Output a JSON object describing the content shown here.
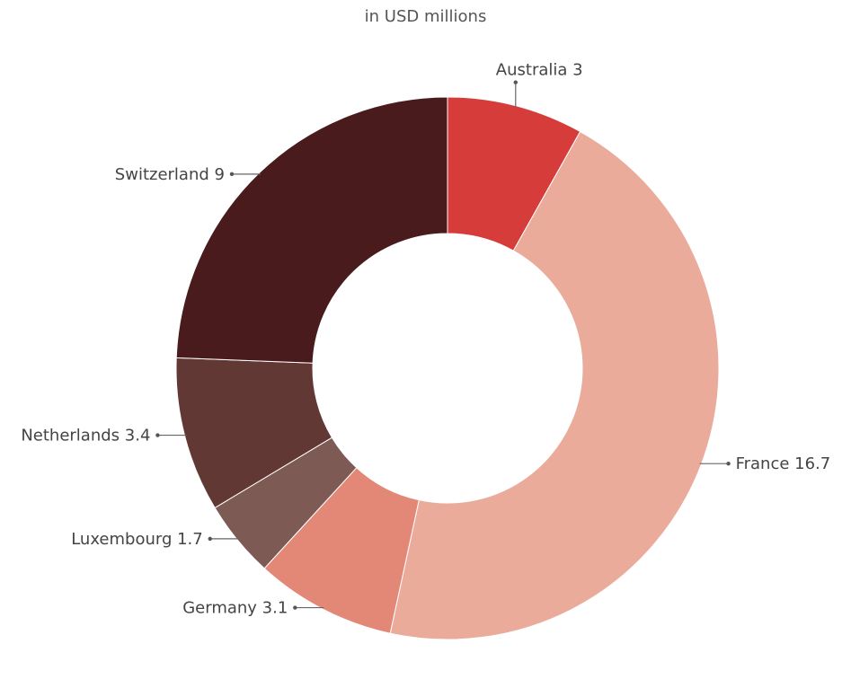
{
  "chart_data": {
    "type": "pie",
    "variant": "donut",
    "subtitle": "in USD millions",
    "start_angle_deg": 0,
    "direction": "clockwise",
    "slices": [
      {
        "label": "Australia",
        "value": 3,
        "display": "Australia 3",
        "color": "#d63c3a"
      },
      {
        "label": "France",
        "value": 16.7,
        "display": "France 16.7",
        "color": "#eaab9b"
      },
      {
        "label": "Germany",
        "value": 3.1,
        "display": "Germany 3.1",
        "color": "#e38877"
      },
      {
        "label": "Luxembourg",
        "value": 1.7,
        "display": "Luxembourg 1.7",
        "color": "#7d5a53"
      },
      {
        "label": "Netherlands",
        "value": 3.4,
        "display": "Netherlands 3.4",
        "color": "#613834"
      },
      {
        "label": "Switzerland",
        "value": 9,
        "display": "Switzerland 9",
        "color": "#4a1b1d"
      }
    ]
  }
}
